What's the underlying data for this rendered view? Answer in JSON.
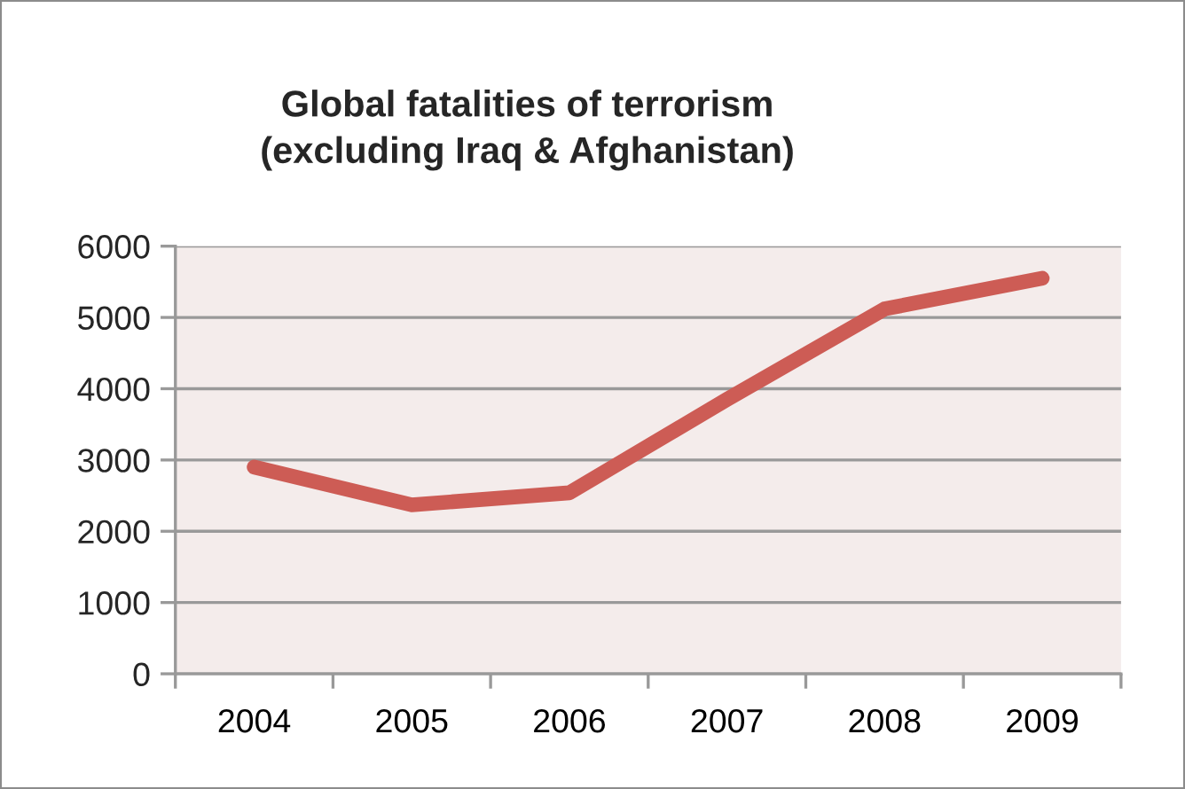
{
  "chart_data": {
    "type": "line",
    "title": "Global fatalities of terrorism\n(excluding Iraq & Afghanistan)",
    "categories": [
      "2004",
      "2005",
      "2006",
      "2007",
      "2008",
      "2009"
    ],
    "series": [
      {
        "color": "#cd5c55",
        "values": [
          2900,
          2370,
          2540,
          3850,
          5120,
          5550
        ]
      }
    ],
    "ylim": [
      0,
      6000
    ],
    "yticks": [
      0,
      1000,
      2000,
      3000,
      4000,
      5000,
      6000
    ],
    "grid": "y"
  }
}
